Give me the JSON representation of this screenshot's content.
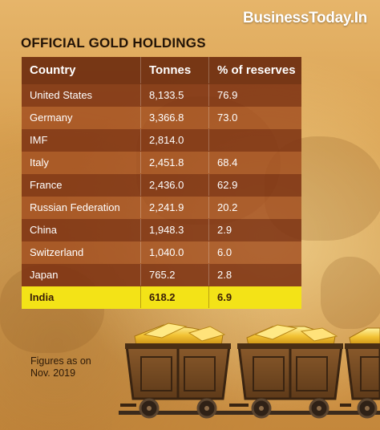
{
  "brand": "BusinessToday.In",
  "title": "OFFICIAL GOLD HOLDINGS",
  "table": {
    "headers": [
      "Country",
      "Tonnes",
      "% of reserves"
    ],
    "rows": [
      {
        "country": "United States",
        "tonnes": "8,133.5",
        "pct": "76.9"
      },
      {
        "country": "Germany",
        "tonnes": "3,366.8",
        "pct": "73.0"
      },
      {
        "country": "IMF",
        "tonnes": "2,814.0",
        "pct": ""
      },
      {
        "country": "Italy",
        "tonnes": "2,451.8",
        "pct": "68.4"
      },
      {
        "country": "France",
        "tonnes": "2,436.0",
        "pct": "62.9"
      },
      {
        "country": "Russian Federation",
        "tonnes": "2,241.9",
        "pct": "20.2"
      },
      {
        "country": "China",
        "tonnes": "1,948.3",
        "pct": "2.9"
      },
      {
        "country": "Switzerland",
        "tonnes": "1,040.0",
        "pct": "6.0"
      },
      {
        "country": "Japan",
        "tonnes": "765.2",
        "pct": "2.8"
      },
      {
        "country": "India",
        "tonnes": "618.2",
        "pct": "6.9"
      }
    ]
  },
  "note": {
    "line1": "Figures as on",
    "line2": "Nov. 2019"
  },
  "colors": {
    "highlight": "#f3e317",
    "table_dark": "#7d3212",
    "table_light": "#a04b1e",
    "gold": "#f2c233"
  },
  "icons": [
    "gold-mine-cart-icon",
    "gold-mine-cart-icon",
    "gold-mine-cart-icon"
  ]
}
